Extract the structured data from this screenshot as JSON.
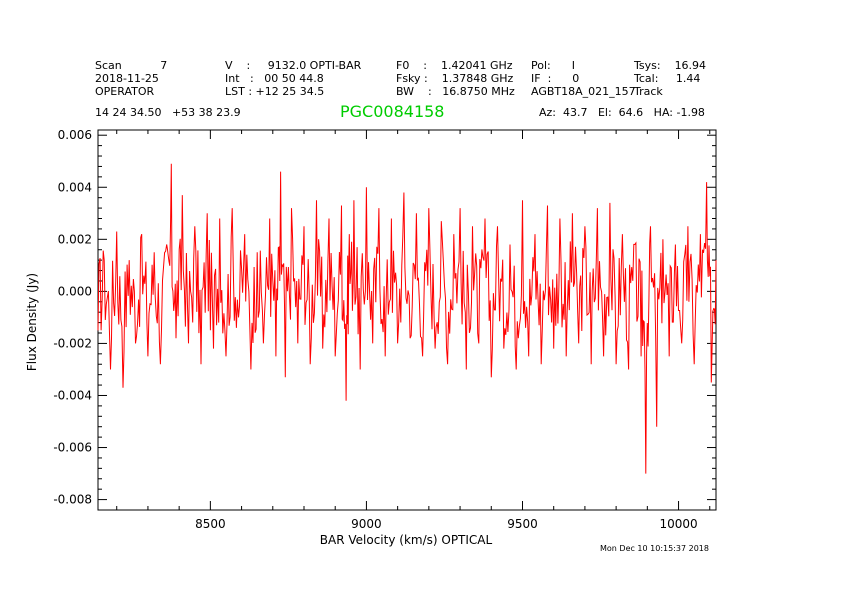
{
  "header": {
    "col1": [
      "Scan           7",
      "2018-11-25",
      "OPERATOR"
    ],
    "col2": [
      "V    :     9132.0 OPTI-BAR",
      "Int   :   00 50 44.8",
      "LST : +12 25 34.5"
    ],
    "col3": [
      "F0    :    1.42041 GHz",
      "Fsky :    1.37848 GHz",
      "BW    :   16.8750 MHz"
    ],
    "col4": [
      "Pol:      I",
      "IF  :      0",
      "AGBT18A_021_157"
    ],
    "col5": [
      "Tsys:    16.94",
      "Tcal:     1.44",
      "Track"
    ],
    "coords": "14 24 34.50   +53 38 23.9",
    "object": "PGC0084158",
    "pointing": "Az:  43.7   El:  64.6   HA: -1.98"
  },
  "timestamp": "Mon Dec 10 10:15:37 2018",
  "chart_data": {
    "type": "line",
    "xlabel": "BAR Velocity (km/s) OPTICAL",
    "ylabel": "Flux Density (Jy)",
    "xlim": [
      8140,
      10120
    ],
    "ylim": [
      -0.0084,
      0.0062
    ],
    "xticks": [
      8500,
      9000,
      9500,
      10000
    ],
    "xtick_labels": [
      "8500",
      "9000",
      "9500",
      "10000"
    ],
    "yticks": [
      -0.008,
      -0.006,
      -0.004,
      -0.002,
      0.0,
      0.002,
      0.004,
      0.006
    ],
    "ytick_labels": [
      "-0.008",
      "-0.006",
      "-0.004",
      "-0.002",
      "0.000",
      "0.002",
      "0.004",
      "0.006"
    ],
    "grid": false,
    "line_color": "#ff0000",
    "series": [
      {
        "x": [
          8140,
          8160,
          8180,
          8200,
          8220,
          8240,
          8260,
          8280,
          8300,
          8320,
          8340,
          8360,
          8375,
          8390,
          8410,
          8430,
          8450,
          8470,
          8490,
          8510,
          8530,
          8550,
          8570,
          8590,
          8610,
          8630,
          8650,
          8670,
          8690,
          8710,
          8725,
          8740,
          8760,
          8780,
          8800,
          8820,
          8840,
          8860,
          8880,
          8900,
          8920,
          8935,
          8945,
          8960,
          8980,
          9000,
          9020,
          9040,
          9060,
          9080,
          9100,
          9120,
          9140,
          9160,
          9180,
          9200,
          9220,
          9240,
          9260,
          9280,
          9300,
          9320,
          9340,
          9360,
          9380,
          9400,
          9420,
          9440,
          9460,
          9480,
          9500,
          9520,
          9540,
          9560,
          9580,
          9600,
          9620,
          9640,
          9660,
          9680,
          9700,
          9720,
          9740,
          9760,
          9780,
          9800,
          9820,
          9840,
          9860,
          9880,
          9895,
          9910,
          9930,
          9950,
          9970,
          9990,
          10010,
          10030,
          10050,
          10070,
          10090,
          10105,
          10120
        ],
        "y": [
          -0.0015,
          0.0012,
          -0.003,
          0.0023,
          -0.0037,
          0.0012,
          -0.002,
          0.0022,
          -0.0025,
          0.0015,
          -0.0028,
          0.0018,
          0.0049,
          -0.0018,
          0.0037,
          -0.002,
          0.0025,
          -0.0028,
          0.003,
          -0.0022,
          0.0028,
          -0.0025,
          0.0032,
          -0.001,
          0.0022,
          -0.003,
          0.0015,
          -0.002,
          0.0028,
          -0.0025,
          0.0046,
          -0.0033,
          0.0032,
          -0.002,
          0.0025,
          -0.0028,
          0.0035,
          -0.0022,
          0.0028,
          -0.0025,
          0.0033,
          -0.0042,
          0.0022,
          0.0035,
          -0.003,
          0.004,
          -0.002,
          0.0032,
          -0.0025,
          0.0028,
          -0.002,
          0.0038,
          -0.0018,
          0.003,
          -0.0025,
          0.0032,
          -0.0022,
          0.0027,
          -0.0028,
          0.0022,
          0.0032,
          -0.003,
          0.0025,
          -0.002,
          0.0028,
          -0.0033,
          0.0025,
          -0.0022,
          0.0018,
          -0.003,
          0.0035,
          -0.0025,
          0.0022,
          -0.0028,
          0.0033,
          -0.0022,
          0.0028,
          -0.0025,
          0.003,
          -0.002,
          0.0025,
          -0.0028,
          0.0032,
          -0.0025,
          0.0034,
          -0.0028,
          0.0022,
          -0.003,
          0.0018,
          -0.0025,
          -0.007,
          0.0025,
          -0.0052,
          0.002,
          -0.0025,
          0.0018,
          -0.002,
          0.0025,
          -0.0028,
          0.0022,
          0.0042,
          -0.0035,
          0.0012
        ]
      }
    ]
  }
}
